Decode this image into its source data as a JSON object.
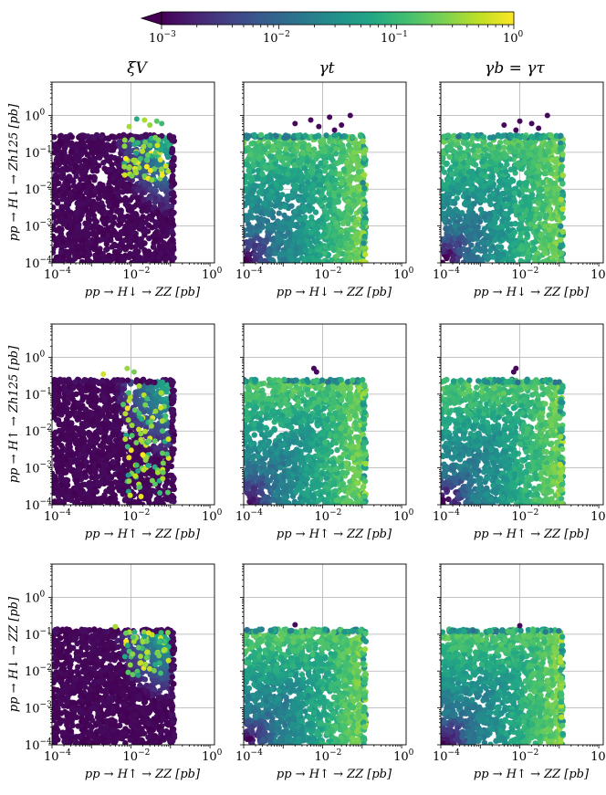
{
  "colorbar": {
    "min_label": "10",
    "min_exp": "−3",
    "t2_label": "10",
    "t2_exp": "−2",
    "t3_label": "10",
    "t3_exp": "−1",
    "max_label": "10",
    "max_exp": "0",
    "range": [
      0.001,
      1
    ],
    "scale": "log",
    "colormap": "viridis",
    "extend": "min"
  },
  "column_titles": [
    "ξV",
    "γt",
    "γb = γτ"
  ],
  "row_xlabels": [
    "pp → H↓ → ZZ [pb]",
    "pp → H↑ → ZZ [pb]",
    "pp → H↑ → ZZ [pb]"
  ],
  "row_ylabels": [
    "pp → H↓ → Zh125 [pb]",
    "pp → H↑ → Zh125 [pb]",
    "pp → H↓ → ZZ [pb]"
  ],
  "tick_labels": {
    "base": "10",
    "x_exps": [
      "−4",
      "−2",
      "0"
    ],
    "y_exps": [
      "−4",
      "−3",
      "−2",
      "−1",
      "0"
    ]
  },
  "chart_data": {
    "type": "scatter",
    "grid": true,
    "xscale": "log",
    "yscale": "log",
    "xlim": [
      0.0001,
      1.3
    ],
    "ylim": [
      0.0001,
      8
    ],
    "panels": [
      {
        "row": 0,
        "col": 0,
        "color_variable": "ξV",
        "x_max": 0.11,
        "y_max": 0.26,
        "outliers": [
          [
            0.014,
            0.8
          ],
          [
            0.022,
            0.75
          ],
          [
            0.045,
            0.7
          ],
          [
            0.03,
            0.55
          ],
          [
            0.06,
            0.6
          ],
          [
            0.009,
            0.5
          ]
        ]
      },
      {
        "row": 0,
        "col": 1,
        "color_variable": "γt",
        "x_max": 0.11,
        "y_max": 0.26,
        "outliers": [
          [
            0.002,
            0.6
          ],
          [
            0.005,
            0.75
          ],
          [
            0.008,
            0.5
          ],
          [
            0.015,
            0.9
          ],
          [
            0.03,
            0.55
          ],
          [
            0.05,
            1.0
          ],
          [
            0.02,
            0.4
          ]
        ]
      },
      {
        "row": 0,
        "col": 2,
        "color_variable": "γb = γτ",
        "x_max": 0.11,
        "y_max": 0.26,
        "outliers": [
          [
            0.004,
            0.55
          ],
          [
            0.01,
            0.7
          ],
          [
            0.02,
            0.6
          ],
          [
            0.05,
            1.0
          ],
          [
            0.03,
            0.45
          ],
          [
            0.008,
            0.4
          ]
        ]
      },
      {
        "row": 1,
        "col": 0,
        "color_variable": "ξV",
        "x_max": 0.11,
        "y_max": 0.22,
        "outliers": [
          [
            0.008,
            0.5
          ],
          [
            0.012,
            0.4
          ],
          [
            0.002,
            0.35
          ]
        ]
      },
      {
        "row": 1,
        "col": 1,
        "color_variable": "γt",
        "x_max": 0.11,
        "y_max": 0.22,
        "outliers": [
          [
            0.006,
            0.5
          ],
          [
            0.007,
            0.4
          ]
        ]
      },
      {
        "row": 1,
        "col": 2,
        "color_variable": "γb = γτ",
        "x_max": 0.11,
        "y_max": 0.22,
        "outliers": [
          [
            0.008,
            0.5
          ],
          [
            0.007,
            0.4
          ]
        ]
      },
      {
        "row": 2,
        "col": 0,
        "color_variable": "ξV",
        "x_max": 0.11,
        "y_max": 0.12,
        "outliers": [
          [
            0.004,
            0.16
          ]
        ]
      },
      {
        "row": 2,
        "col": 1,
        "color_variable": "γt",
        "x_max": 0.11,
        "y_max": 0.12,
        "outliers": [
          [
            0.002,
            0.18
          ]
        ]
      },
      {
        "row": 2,
        "col": 2,
        "color_variable": "γb = γτ",
        "x_max": 0.11,
        "y_max": 0.12,
        "outliers": [
          [
            0.01,
            0.17
          ]
        ]
      }
    ]
  }
}
